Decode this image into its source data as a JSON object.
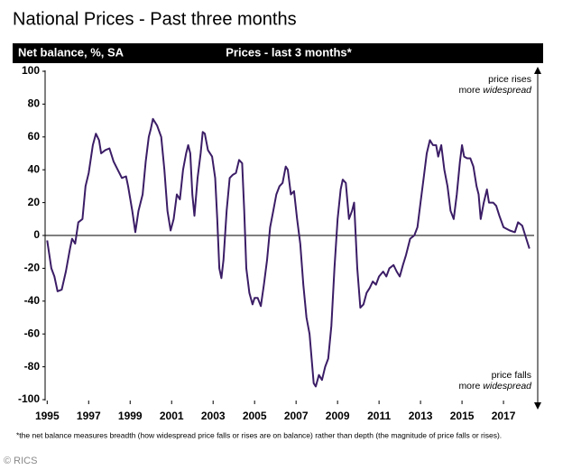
{
  "chart_data": {
    "type": "line",
    "title": "National Prices - Past three months",
    "header_left": "Net balance, %, SA",
    "header_center": "Prices - last 3 months*",
    "annotations": [
      {
        "line1": "price rises",
        "line2": "more",
        "line2_italic": "widespread",
        "position": "top"
      },
      {
        "line1": "price falls",
        "line2": "more",
        "line2_italic": "widespread",
        "position": "bottom"
      }
    ],
    "footnote": "*the net balance measures breadth (how widespread price falls or rises are on balance) rather than depth (the magnitude of price falls or rises).",
    "source": "© RICS",
    "color": "#3b1d66",
    "xlim": [
      1994.9,
      2018.65
    ],
    "xticks": [
      1995,
      1997,
      1999,
      2001,
      2003,
      2005,
      2007,
      2009,
      2011,
      2013,
      2015,
      2017
    ],
    "ylim": [
      -100,
      100
    ],
    "yticks": [
      100,
      80,
      60,
      40,
      20,
      0,
      -20,
      -40,
      -60,
      -80,
      -100
    ],
    "x": [
      1995.0,
      1995.2,
      1995.35,
      1995.5,
      1995.7,
      1995.9,
      1996.1,
      1996.2,
      1996.35,
      1996.5,
      1996.7,
      1996.85,
      1997.0,
      1997.2,
      1997.35,
      1997.5,
      1997.6,
      1997.8,
      1998.0,
      1998.2,
      1998.4,
      1998.6,
      1998.8,
      1998.9,
      1999.1,
      1999.25,
      1999.4,
      1999.6,
      1999.75,
      1999.9,
      2000.0,
      2000.1,
      2000.3,
      2000.5,
      2000.65,
      2000.8,
      2000.95,
      2001.1,
      2001.25,
      2001.4,
      2001.55,
      2001.7,
      2001.8,
      2001.9,
      2002.0,
      2002.1,
      2002.25,
      2002.4,
      2002.5,
      2002.6,
      2002.75,
      2002.95,
      2003.1,
      2003.2,
      2003.3,
      2003.4,
      2003.5,
      2003.65,
      2003.8,
      2003.95,
      2004.1,
      2004.25,
      2004.4,
      2004.5,
      2004.6,
      2004.75,
      2004.9,
      2005.0,
      2005.15,
      2005.3,
      2005.45,
      2005.6,
      2005.75,
      2005.9,
      2006.05,
      2006.2,
      2006.35,
      2006.5,
      2006.6,
      2006.75,
      2006.9,
      2007.05,
      2007.2,
      2007.35,
      2007.5,
      2007.65,
      2007.75,
      2007.85,
      2007.95,
      2008.1,
      2008.25,
      2008.4,
      2008.55,
      2008.7,
      2008.85,
      2009.0,
      2009.15,
      2009.25,
      2009.4,
      2009.55,
      2009.7,
      2009.8,
      2009.95,
      2010.1,
      2010.25,
      2010.4,
      2010.55,
      2010.7,
      2010.85,
      2011.0,
      2011.2,
      2011.35,
      2011.5,
      2011.7,
      2011.85,
      2012.0,
      2012.15,
      2012.3,
      2012.5,
      2012.7,
      2012.85,
      2013.0,
      2013.15,
      2013.3,
      2013.45,
      2013.6,
      2013.75,
      2013.85,
      2014.0,
      2014.15,
      2014.3,
      2014.45,
      2014.6,
      2014.75,
      2014.9,
      2015.0,
      2015.1,
      2015.25,
      2015.4,
      2015.55,
      2015.7,
      2015.8,
      2015.9,
      2016.05,
      2016.2,
      2016.3,
      2016.5,
      2016.65,
      2016.8,
      2017.0,
      2017.3,
      2017.55,
      2017.7,
      2017.9,
      2018.05,
      2018.25
    ],
    "values": [
      -3,
      -20,
      -25,
      -34,
      -33,
      -22,
      -8,
      -2,
      -5,
      8,
      10,
      30,
      38,
      55,
      62,
      58,
      50,
      52,
      53,
      45,
      40,
      35,
      36,
      30,
      15,
      2,
      15,
      25,
      45,
      60,
      65,
      71,
      67,
      60,
      40,
      15,
      3,
      10,
      25,
      22,
      40,
      50,
      55,
      50,
      25,
      12,
      35,
      50,
      63,
      62,
      52,
      48,
      35,
      10,
      -20,
      -26,
      -15,
      15,
      35,
      37,
      38,
      46,
      44,
      15,
      -20,
      -35,
      -42,
      -38,
      -38,
      -43,
      -30,
      -15,
      5,
      15,
      25,
      30,
      32,
      42,
      40,
      25,
      27,
      10,
      -5,
      -30,
      -50,
      -60,
      -75,
      -90,
      -92,
      -85,
      -88,
      -80,
      -75,
      -55,
      -20,
      10,
      28,
      34,
      32,
      10,
      15,
      20,
      -20,
      -44,
      -42,
      -35,
      -32,
      -28,
      -30,
      -25,
      -22,
      -25,
      -20,
      -18,
      -22,
      -25,
      -18,
      -12,
      -2,
      0,
      5,
      20,
      35,
      50,
      58,
      55,
      55,
      48,
      55,
      40,
      30,
      15,
      10,
      25,
      45,
      55,
      48,
      47,
      47,
      42,
      30,
      25,
      10,
      20,
      28,
      20,
      20,
      18,
      12,
      5,
      3,
      2,
      8,
      6,
      0,
      -8
    ]
  }
}
